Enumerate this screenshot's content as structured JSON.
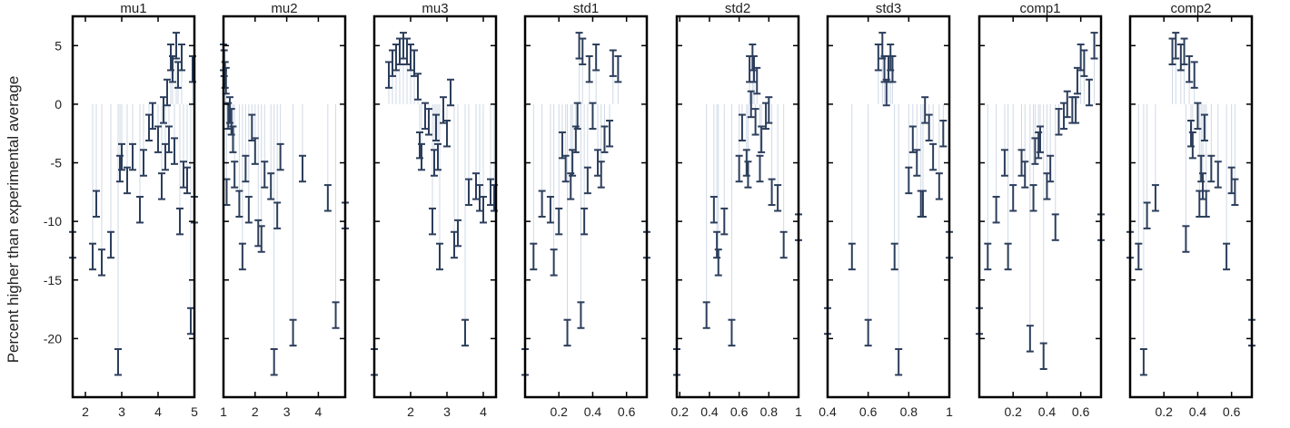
{
  "chart_data": {
    "type": "scatter",
    "ylabel": "Percent higher than experimental average",
    "ylim": [
      -25,
      7.5
    ],
    "yticks": [
      5,
      0,
      -5,
      -10,
      -15,
      -20
    ],
    "error_halfwidth": 1.1,
    "colors": {
      "errorbar": "#2c3e5c",
      "stem": "#cfd9e6",
      "frame": "#000000"
    },
    "panels": [
      {
        "title": "mu1",
        "xlim": [
          1.65,
          5.0
        ],
        "xticks": [
          2,
          3,
          4,
          5
        ],
        "x": [
          1.65,
          2.2,
          2.3,
          2.45,
          2.7,
          2.9,
          2.95,
          3.0,
          3.15,
          3.3,
          3.5,
          3.6,
          3.75,
          3.85,
          4.0,
          4.1,
          4.15,
          4.2,
          4.25,
          4.3,
          4.35,
          4.4,
          4.45,
          4.5,
          4.55,
          4.6,
          4.65,
          4.7,
          4.8,
          4.9,
          4.95,
          5.0
        ],
        "y": [
          -12,
          -13,
          -8.5,
          -13.5,
          -12,
          -22,
          -5.5,
          -4.5,
          -6.5,
          -4.5,
          -9,
          -5,
          -2,
          -1,
          -3,
          -7,
          -0.5,
          -4.5,
          1,
          -3,
          4,
          3,
          -4,
          5,
          2.5,
          -10,
          4,
          -6,
          -6.5,
          -18.5,
          3,
          -9
        ]
      },
      {
        "title": "mu2",
        "xlim": [
          1.0,
          4.85
        ],
        "xticks": [
          1,
          2,
          3,
          4
        ],
        "x": [
          1.0,
          1.02,
          1.05,
          1.08,
          1.1,
          1.15,
          1.2,
          1.25,
          1.3,
          1.35,
          1.5,
          1.6,
          1.7,
          1.8,
          1.9,
          2.0,
          2.1,
          2.2,
          2.3,
          2.5,
          2.6,
          2.7,
          2.8,
          3.2,
          3.5,
          4.3,
          4.55,
          4.85
        ],
        "y": [
          4,
          3.5,
          2.5,
          2,
          -7.5,
          -1,
          -0.5,
          -1.5,
          -3,
          -6,
          -8.5,
          -13,
          -5.5,
          -9,
          -2,
          -4,
          -11,
          -11.5,
          -6,
          -7,
          -22,
          -9.5,
          -4.5,
          -19.5,
          -5.5,
          -8,
          -18,
          -9.5
        ]
      },
      {
        "title": "mu3",
        "xlim": [
          1.0,
          4.35
        ],
        "xticks": [
          2,
          3,
          4
        ],
        "x": [
          1.0,
          1.4,
          1.5,
          1.6,
          1.7,
          1.8,
          1.9,
          2.0,
          2.1,
          2.2,
          2.25,
          2.3,
          2.4,
          2.5,
          2.6,
          2.65,
          2.7,
          2.75,
          2.8,
          2.9,
          3.0,
          3.1,
          3.2,
          3.3,
          3.5,
          3.6,
          3.8,
          3.9,
          4.0,
          4.2,
          4.3
        ],
        "y": [
          -22,
          2.5,
          3.5,
          4,
          4.5,
          5,
          4.5,
          4,
          3.5,
          1.5,
          -3.5,
          -4.5,
          -1,
          -1.5,
          -10,
          -5,
          -2,
          -4.5,
          -13,
          -0.5,
          -2.5,
          1,
          -12,
          -11,
          -19.5,
          -7.5,
          -7,
          -8,
          -9,
          -7.5,
          -8
        ]
      },
      {
        "title": "std1",
        "xlim": [
          0.0,
          0.72
        ],
        "xticks": [
          0.2,
          0.4,
          0.6
        ],
        "x": [
          0.0,
          0.05,
          0.1,
          0.15,
          0.17,
          0.2,
          0.22,
          0.24,
          0.25,
          0.27,
          0.28,
          0.3,
          0.31,
          0.32,
          0.33,
          0.34,
          0.35,
          0.37,
          0.38,
          0.4,
          0.42,
          0.43,
          0.45,
          0.47,
          0.5,
          0.52,
          0.55,
          0.72
        ],
        "y": [
          -22,
          -13,
          -8.5,
          -9,
          -13.5,
          -10,
          -3.5,
          -5.5,
          -19.5,
          -7,
          -5,
          -3,
          -1,
          5,
          -18,
          4.5,
          -10,
          -6.5,
          3,
          -1,
          4,
          -5,
          -6,
          -3,
          -2.5,
          3.5,
          3,
          -12
        ]
      },
      {
        "title": "std2",
        "xlim": [
          0.18,
          1.0
        ],
        "xticks": [
          0.2,
          0.4,
          0.6,
          0.8,
          1
        ],
        "x": [
          0.18,
          0.38,
          0.43,
          0.45,
          0.46,
          0.5,
          0.55,
          0.6,
          0.62,
          0.65,
          0.66,
          0.67,
          0.68,
          0.69,
          0.7,
          0.71,
          0.72,
          0.74,
          0.75,
          0.78,
          0.8,
          0.82,
          0.86,
          0.9,
          1.0
        ],
        "y": [
          -22,
          -18,
          -9,
          -12,
          -13.5,
          -10,
          -19.5,
          -5.5,
          -2,
          -5,
          -6,
          3,
          0,
          4,
          3,
          -1.5,
          2,
          -5.5,
          -3,
          -1,
          -0.5,
          -7.5,
          -8,
          -12,
          -10.5
        ]
      },
      {
        "title": "std3",
        "xlim": [
          0.4,
          1.0
        ],
        "xticks": [
          0.4,
          0.6,
          0.8,
          1
        ],
        "x": [
          0.4,
          0.52,
          0.6,
          0.65,
          0.67,
          0.68,
          0.69,
          0.7,
          0.71,
          0.72,
          0.73,
          0.75,
          0.8,
          0.82,
          0.84,
          0.86,
          0.87,
          0.88,
          0.9,
          0.92,
          0.95,
          0.97,
          1.0
        ],
        "y": [
          -18.5,
          -13,
          -19.5,
          4,
          5,
          3,
          1,
          3,
          4,
          3,
          -13,
          -22,
          -6.5,
          -3,
          -5,
          -8.5,
          -8.5,
          -0.5,
          -2,
          -4.5,
          -7,
          -2.5,
          -12
        ]
      },
      {
        "title": "comp1",
        "xlim": [
          0.0,
          0.72
        ],
        "xticks": [
          0.2,
          0.4,
          0.6
        ],
        "x": [
          0.0,
          0.05,
          0.1,
          0.15,
          0.17,
          0.2,
          0.25,
          0.27,
          0.3,
          0.32,
          0.33,
          0.35,
          0.36,
          0.38,
          0.4,
          0.42,
          0.45,
          0.47,
          0.5,
          0.52,
          0.55,
          0.57,
          0.58,
          0.6,
          0.62,
          0.65,
          0.68,
          0.72
        ],
        "y": [
          -18.5,
          -13,
          -9,
          -5,
          -13,
          -8,
          -5,
          -6,
          -20,
          -8,
          -4,
          -3.5,
          -3,
          -21.5,
          -7,
          -5.5,
          -10.5,
          -1.5,
          -1,
          0,
          -0.5,
          -0.5,
          2,
          4,
          3.5,
          1,
          5,
          -10.5
        ]
      },
      {
        "title": "comp2",
        "xlim": [
          0.0,
          0.72
        ],
        "xticks": [
          0.2,
          0.4,
          0.6
        ],
        "x": [
          0.0,
          0.05,
          0.08,
          0.1,
          0.15,
          0.25,
          0.27,
          0.3,
          0.32,
          0.33,
          0.35,
          0.36,
          0.37,
          0.38,
          0.4,
          0.41,
          0.42,
          0.43,
          0.44,
          0.45,
          0.48,
          0.52,
          0.57,
          0.6,
          0.62,
          0.72
        ],
        "y": [
          -12,
          -13,
          -22,
          -9.5,
          -8,
          4.5,
          5,
          4,
          4.5,
          -11.5,
          3,
          -2.5,
          -3.5,
          2.5,
          -1,
          -8.5,
          -5.5,
          -7,
          -2,
          -8.5,
          -5.5,
          -6,
          -13,
          -6.5,
          -7.5,
          -19.5
        ]
      }
    ]
  }
}
